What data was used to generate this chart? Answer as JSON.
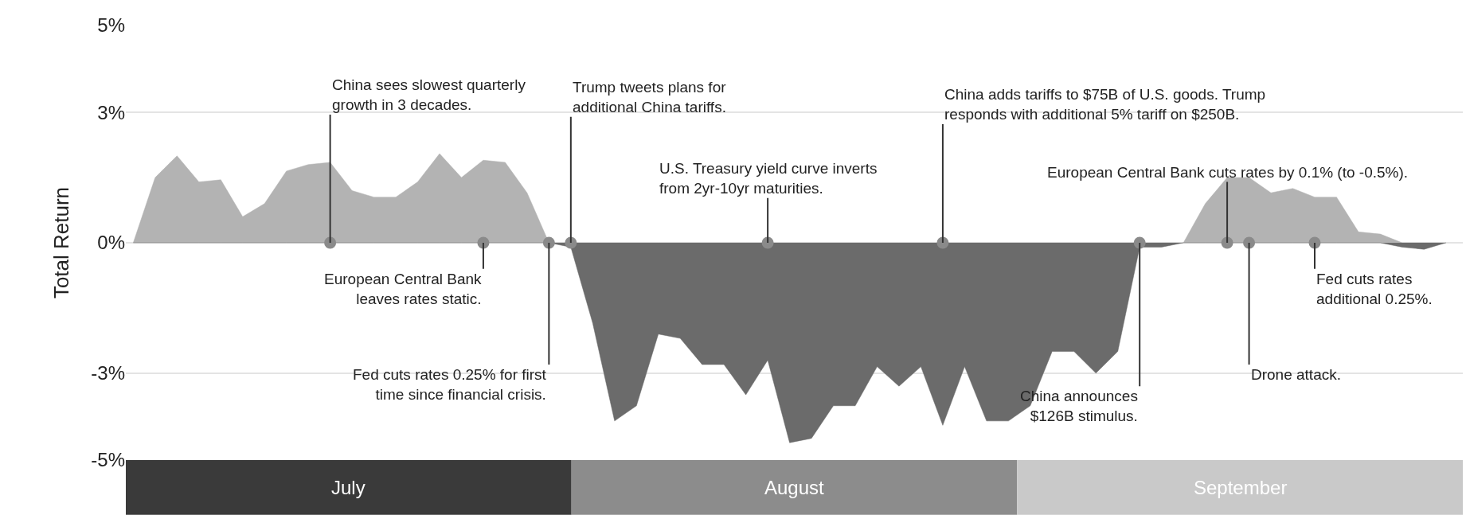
{
  "chart_data": [
    {
      "type": "area",
      "ylabel": "Total Return",
      "categories": [
        null,
        null,
        null,
        null,
        null,
        null,
        null,
        null,
        null,
        null,
        null,
        null,
        null,
        null,
        null,
        null,
        null,
        null,
        null,
        null,
        null,
        null,
        null,
        null,
        null,
        null,
        null,
        null,
        null,
        null,
        null,
        null,
        null,
        null,
        null,
        null,
        null,
        null,
        null,
        null,
        null,
        null,
        null,
        null,
        null,
        null,
        null,
        null,
        null,
        null,
        null,
        null,
        null,
        null,
        null,
        null,
        null,
        null,
        null,
        null,
        null
      ],
      "series": [
        {
          "color": "#b3b3b3",
          "values": [
            0,
            1.5,
            2.0,
            1.4,
            1.45,
            0.6,
            0.9,
            1.65,
            1.8,
            1.85,
            1.2,
            1.05,
            1.05,
            1.4,
            2.05,
            1.5,
            1.9,
            1.85,
            1.15,
            0,
            0,
            0,
            0,
            0,
            0,
            0,
            0,
            0,
            0,
            0,
            0,
            0,
            0,
            0,
            0,
            0,
            0,
            0,
            0,
            0,
            0,
            0,
            0,
            0,
            0,
            0,
            0,
            0,
            0,
            0.9,
            1.5,
            1.5,
            1.15,
            1.25,
            1.05,
            1.05,
            0.25,
            0.2,
            0,
            0,
            0
          ]
        },
        {
          "color": "#6b6b6b",
          "values": [
            0,
            0,
            0,
            0,
            0,
            0,
            0,
            0,
            0,
            0,
            0,
            0,
            0,
            0,
            0,
            0,
            0,
            0,
            0,
            0,
            -0.1,
            -1.85,
            -4.1,
            -3.75,
            -2.1,
            -2.2,
            -2.8,
            -2.8,
            -3.5,
            -2.7,
            -4.6,
            -4.5,
            -3.75,
            -3.75,
            -2.85,
            -3.3,
            -2.85,
            -4.2,
            -2.85,
            -4.1,
            -4.1,
            -3.75,
            -2.5,
            -2.5,
            -3.0,
            -2.5,
            -0.1,
            -0.1,
            0,
            0,
            0,
            0,
            0,
            0,
            0,
            0,
            0,
            0,
            -0.1,
            -0.15,
            0
          ]
        },
        {
          "type": "scatter",
          "marker": "circle",
          "color": "#8a8a8a",
          "values": [
            null,
            null,
            null,
            null,
            null,
            null,
            null,
            null,
            null,
            0,
            null,
            null,
            null,
            null,
            null,
            null,
            0,
            null,
            null,
            0,
            0,
            null,
            null,
            null,
            null,
            null,
            null,
            null,
            null,
            0,
            null,
            null,
            null,
            null,
            null,
            null,
            null,
            0,
            null,
            null,
            null,
            null,
            null,
            null,
            null,
            null,
            0,
            null,
            null,
            null,
            0,
            0,
            null,
            null,
            0,
            null,
            null,
            null,
            null,
            null,
            null
          ]
        }
      ],
      "ylim": [
        -5,
        5
      ],
      "yticks": [
        {
          "value": 5,
          "label": "5%"
        },
        {
          "value": 3,
          "label": "3%"
        },
        {
          "value": 0,
          "label": "0%"
        },
        {
          "value": -3,
          "label": "-3%"
        },
        {
          "value": -5,
          "label": "-5%"
        }
      ],
      "tick_labels": "y",
      "grid": "y",
      "annotations": [
        "China sees slowest quarterly\ngrowth in 3 decades.",
        "European Central Bank\nleaves rates static.",
        "Fed cuts rates 0.25% for first\ntime since financial crisis.",
        "Trump tweets plans for\nadditional China tariffs.",
        "U.S. Treasury yield curve inverts\nfrom 2yr-10yr maturities.",
        "China adds tariffs to $75B of U.S. goods. Trump\nresponds with additional 5% tariff on $250B.",
        "China announces\n$126B stimulus.",
        "European Central Bank cuts rates by 0.1% (to -0.5%).",
        "Drone attack.",
        "Fed cuts rates\nadditional 0.25%."
      ]
    },
    {
      "type": "other",
      "categories": [
        "July",
        "August",
        "September"
      ],
      "colors": [
        "#3a3a3a",
        "#8c8c8c",
        "#c9c9c9"
      ]
    }
  ]
}
